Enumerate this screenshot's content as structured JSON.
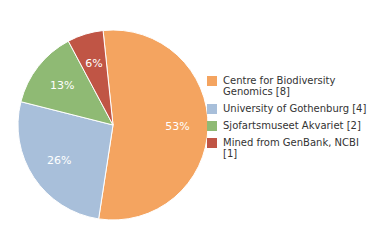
{
  "chart_data": {
    "type": "pie",
    "categories": [
      "Centre for Biodiversity\nGenomics [8]",
      "University of Gothenburg [4]",
      "Sjofartsmuseet Akvariet [2]",
      "Mined from GenBank, NCBI [1]"
    ],
    "values": [
      53,
      26,
      13,
      6
    ],
    "value_labels": [
      "53%",
      "26%",
      "13%",
      "6%"
    ],
    "colors": [
      "#F4A460",
      "#A8BFDA",
      "#8FBA74",
      "#C05545"
    ],
    "data_labels": true,
    "legend": "right"
  }
}
